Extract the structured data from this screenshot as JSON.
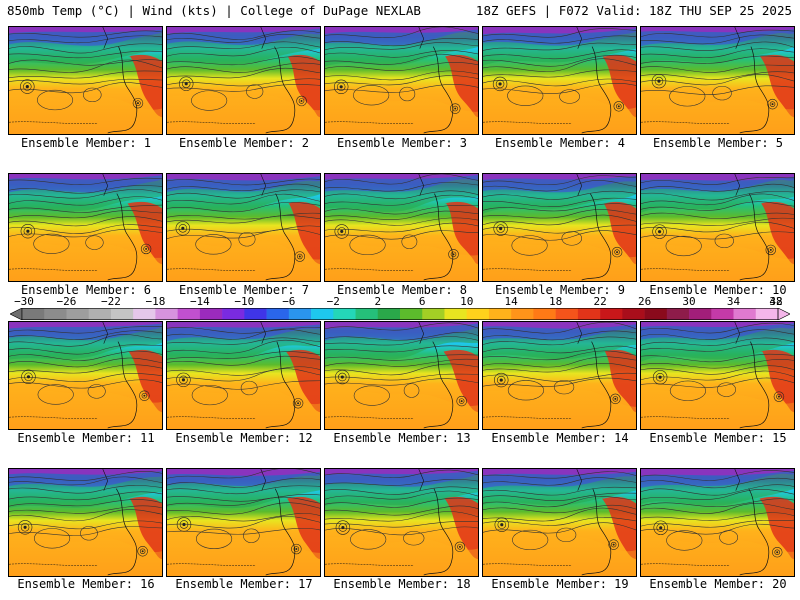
{
  "header": {
    "title_left": "850mb Temp (°C) | Wind (kts) | College of DuPage NEXLAB",
    "title_right": "18Z GEFS | F072 Valid: 18Z THU SEP 25 2025"
  },
  "members": [
    "Ensemble Member: 1",
    "Ensemble Member: 2",
    "Ensemble Member: 3",
    "Ensemble Member: 4",
    "Ensemble Member: 5",
    "Ensemble Member: 6",
    "Ensemble Member: 7",
    "Ensemble Member: 8",
    "Ensemble Member: 9",
    "Ensemble Member: 10",
    "Ensemble Member: 11",
    "Ensemble Member: 12",
    "Ensemble Member: 13",
    "Ensemble Member: 14",
    "Ensemble Member: 15",
    "Ensemble Member: 16",
    "Ensemble Member: 17",
    "Ensemble Member: 18",
    "Ensemble Member: 19",
    "Ensemble Member: 20"
  ],
  "colorbar": {
    "labels": [
      "−30",
      "−26",
      "−22",
      "−18",
      "−14",
      "−10",
      "−6",
      "−2",
      "2",
      "6",
      "10",
      "14",
      "18",
      "22",
      "26",
      "30",
      "34",
      "38",
      "42"
    ],
    "colors": [
      "#7a7a7a",
      "#8c8c8c",
      "#9e9e9e",
      "#b0b0b0",
      "#c4c4c4",
      "#e5c7ea",
      "#d793de",
      "#c150cf",
      "#9b2bbd",
      "#7a2be0",
      "#3f35e8",
      "#2a66ea",
      "#2a95ee",
      "#1ec8ee",
      "#24d7b8",
      "#25c07a",
      "#2aa84a",
      "#5cbb2c",
      "#a3cf25",
      "#e8e520",
      "#ffd21c",
      "#ffb21b",
      "#ff941a",
      "#ff7a16",
      "#f4541b",
      "#e13419",
      "#c9171a",
      "#a90e1b",
      "#8a0a1c",
      "#8e1c4a",
      "#a21e7a",
      "#c43aa8",
      "#e07ad0",
      "#f4b6ea"
    ]
  }
}
